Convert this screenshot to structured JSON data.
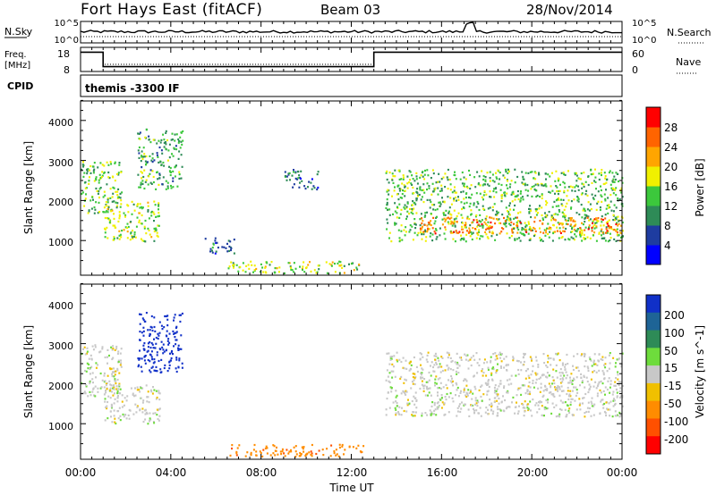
{
  "header": {
    "station": "Fort Hays East (fitACF)",
    "beam": "Beam 03",
    "date": "28/Nov/2014"
  },
  "sky_panel": {
    "left_label": "N.Sky",
    "right_label": "N.Search",
    "left_ticks": [
      "10^5",
      "10^0"
    ],
    "right_ticks": [
      "10^5",
      "10^0"
    ]
  },
  "freq_panel": {
    "left_label_line1": "Freq.",
    "left_label_line2": "[MHz]",
    "right_label": "Nave",
    "left_ticks": [
      "18",
      "8"
    ],
    "right_ticks": [
      "60",
      "0"
    ]
  },
  "cpid_panel": {
    "label": "CPID",
    "text": "themis -3300 IF"
  },
  "x_axis": {
    "ticks": [
      "00:00",
      "04:00",
      "08:00",
      "12:00",
      "16:00",
      "20:00",
      "00:00"
    ],
    "label": "Time UT"
  },
  "power_panel": {
    "ylabel": "Slant Range [km]",
    "yticks": [
      "1000",
      "2000",
      "3000",
      "4000"
    ],
    "colorbar_label": "Power [dB]",
    "colorbar_ticks": [
      "4",
      "8",
      "12",
      "16",
      "20",
      "24",
      "28"
    ],
    "colors": [
      "#0000ff",
      "#1e3ca0",
      "#2e8b57",
      "#3cc83c",
      "#f0f000",
      "#ffa500",
      "#ff6400",
      "#ff0000"
    ]
  },
  "velocity_panel": {
    "ylabel": "Slant Range [km]",
    "yticks": [
      "1000",
      "2000",
      "3000",
      "4000"
    ],
    "colorbar_label": "Velocity [m s^-1]",
    "colorbar_ticks": [
      "200",
      "100",
      "50",
      "15",
      "-15",
      "-50",
      "-100",
      "-200"
    ],
    "colors": [
      "#1030c8",
      "#1e6496",
      "#2e8b57",
      "#6edc3c",
      "#c8c8c8",
      "#f0c000",
      "#ff8c00",
      "#ff5000",
      "#ff0000"
    ]
  },
  "chart_data": [
    {
      "type": "heatmap",
      "title": "Power",
      "xlabel": "Time UT",
      "ylabel": "Slant Range [km]",
      "xlim": [
        0,
        24
      ],
      "ylim": [
        200,
        4500
      ],
      "colorbar": {
        "label": "Power [dB]",
        "range": [
          0,
          32
        ],
        "ticks": [
          4,
          8,
          12,
          16,
          20,
          24,
          28
        ]
      },
      "regions": [
        {
          "t_start": 0.0,
          "t_end": 1.8,
          "range_min": 1700,
          "range_max": 3000,
          "power": 14
        },
        {
          "t_start": 1.0,
          "t_end": 3.5,
          "range_min": 1000,
          "range_max": 2000,
          "power": 16
        },
        {
          "t_start": 2.5,
          "t_end": 4.5,
          "range_min": 2300,
          "range_max": 3800,
          "power": 12
        },
        {
          "t_start": 5.5,
          "t_end": 6.8,
          "range_min": 700,
          "range_max": 1100,
          "power": 8
        },
        {
          "t_start": 6.5,
          "t_end": 12.5,
          "range_min": 200,
          "range_max": 500,
          "power": 16
        },
        {
          "t_start": 9.0,
          "t_end": 10.5,
          "range_min": 2300,
          "range_max": 2800,
          "power": 8
        },
        {
          "t_start": 13.5,
          "t_end": 24.0,
          "range_min": 1000,
          "range_max": 2800,
          "power": 14
        },
        {
          "t_start": 15.0,
          "t_end": 24.0,
          "range_min": 1200,
          "range_max": 1600,
          "power": 24
        }
      ]
    },
    {
      "type": "heatmap",
      "title": "Velocity",
      "xlabel": "Time UT",
      "ylabel": "Slant Range [km]",
      "xlim": [
        0,
        24
      ],
      "ylim": [
        200,
        4500
      ],
      "colorbar": {
        "label": "Velocity [m s^-1]",
        "range": [
          -250,
          250
        ],
        "ticks": [
          200,
          100,
          50,
          15,
          -15,
          -50,
          -100,
          -200
        ]
      },
      "regions": [
        {
          "t_start": 0.0,
          "t_end": 1.8,
          "range_min": 1700,
          "range_max": 3000,
          "velocity": 0
        },
        {
          "t_start": 1.0,
          "t_end": 3.5,
          "range_min": 1000,
          "range_max": 2000,
          "velocity": 0
        },
        {
          "t_start": 2.5,
          "t_end": 4.5,
          "range_min": 2300,
          "range_max": 3800,
          "velocity": 200
        },
        {
          "t_start": 6.5,
          "t_end": 12.5,
          "range_min": 200,
          "range_max": 500,
          "velocity": -60
        },
        {
          "t_start": 13.5,
          "t_end": 24.0,
          "range_min": 1200,
          "range_max": 2800,
          "velocity": 0
        }
      ]
    },
    {
      "type": "line",
      "title": "Frequency",
      "xlabel": "Time UT",
      "ylabel": "Freq. [MHz]",
      "xlim": [
        0,
        24
      ],
      "ylim": [
        8,
        18
      ],
      "x": [
        0,
        1.0,
        1.0,
        13.0,
        13.0,
        24
      ],
      "y": [
        16,
        16,
        10,
        10,
        16,
        16
      ]
    }
  ]
}
